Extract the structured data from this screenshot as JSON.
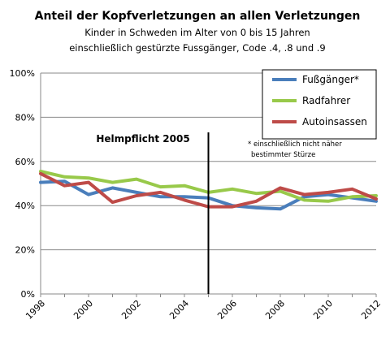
{
  "chart_data": {
    "type": "line",
    "title": "Anteil der Kopfverletzungen  an allen Verletzungen",
    "subtitle_line1": "Kinder in Schweden im  Alter von 0 bis 15 Jahren",
    "subtitle_line2": "einschließlich  gestürzte Fussgänger, Code .4, .8 und .9",
    "x": [
      1998,
      1999,
      2000,
      2001,
      2002,
      2003,
      2004,
      2005,
      2006,
      2007,
      2008,
      2009,
      2010,
      2011,
      2012
    ],
    "x_tick_labels": [
      "1998",
      "2000",
      "2002",
      "2004",
      "2006",
      "2008",
      "2010",
      "2012"
    ],
    "y_tick_labels": [
      "0%",
      "20%",
      "40%",
      "60%",
      "80%",
      "100%"
    ],
    "ylim": [
      0,
      100
    ],
    "xlabel": "",
    "ylabel": "",
    "grid": "horizontal",
    "legend_position": "top-right",
    "series": [
      {
        "name": "Fußgänger*",
        "color": "#4a7ebb",
        "values": [
          50.5,
          51,
          45,
          48,
          46,
          44,
          44,
          43.5,
          40,
          39,
          38.5,
          44,
          45,
          43.5,
          42
        ]
      },
      {
        "name": "Radfahrer",
        "color": "#98c94a",
        "values": [
          55.5,
          53,
          52.5,
          50.5,
          52,
          48.5,
          49,
          46,
          47.5,
          45.5,
          46.5,
          42.5,
          42,
          44,
          44.5
        ]
      },
      {
        "name": "Autoinsassen",
        "color": "#be4b48",
        "values": [
          54.5,
          49,
          50.5,
          41.5,
          44.5,
          46,
          42.5,
          39.5,
          39.5,
          42,
          48,
          45,
          46,
          47.5,
          43
        ]
      }
    ],
    "annotation": {
      "label": "Helmpflicht 2005",
      "x": 2005
    },
    "footnote_line1": "* einschließlich nicht näher",
    "footnote_line2": "bestimmter Stürze"
  }
}
